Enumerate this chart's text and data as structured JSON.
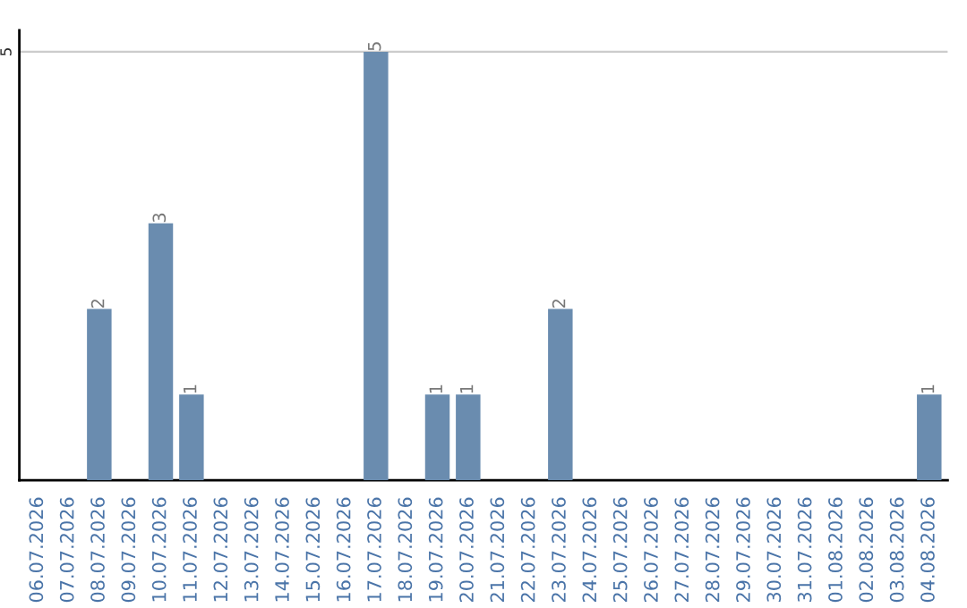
{
  "chart_data": {
    "type": "bar",
    "categories": [
      "06.07.2026",
      "07.07.2026",
      "08.07.2026",
      "09.07.2026",
      "10.07.2026",
      "11.07.2026",
      "12.07.2026",
      "13.07.2026",
      "14.07.2026",
      "15.07.2026",
      "16.07.2026",
      "17.07.2026",
      "18.07.2026",
      "19.07.2026",
      "20.07.2026",
      "21.07.2026",
      "22.07.2026",
      "23.07.2026",
      "24.07.2026",
      "25.07.2026",
      "26.07.2026",
      "27.07.2026",
      "28.07.2026",
      "29.07.2026",
      "30.07.2026",
      "31.07.2026",
      "01.08.2026",
      "02.08.2026",
      "03.08.2026",
      "04.08.2026"
    ],
    "values": [
      0,
      0,
      2,
      0,
      3,
      1,
      0,
      0,
      0,
      0,
      0,
      5,
      0,
      1,
      1,
      0,
      0,
      2,
      0,
      0,
      0,
      0,
      0,
      0,
      0,
      0,
      0,
      0,
      0,
      1
    ],
    "value_labels": [
      null,
      null,
      "2",
      null,
      "3",
      "1",
      null,
      null,
      null,
      null,
      null,
      "5",
      null,
      "1",
      "1",
      null,
      null,
      "2",
      null,
      null,
      null,
      null,
      null,
      null,
      null,
      null,
      null,
      null,
      null,
      "1"
    ],
    "color": "#6a8caf",
    "ylim": [
      0,
      5.25
    ],
    "yticks": [
      5
    ],
    "grid": "y"
  }
}
